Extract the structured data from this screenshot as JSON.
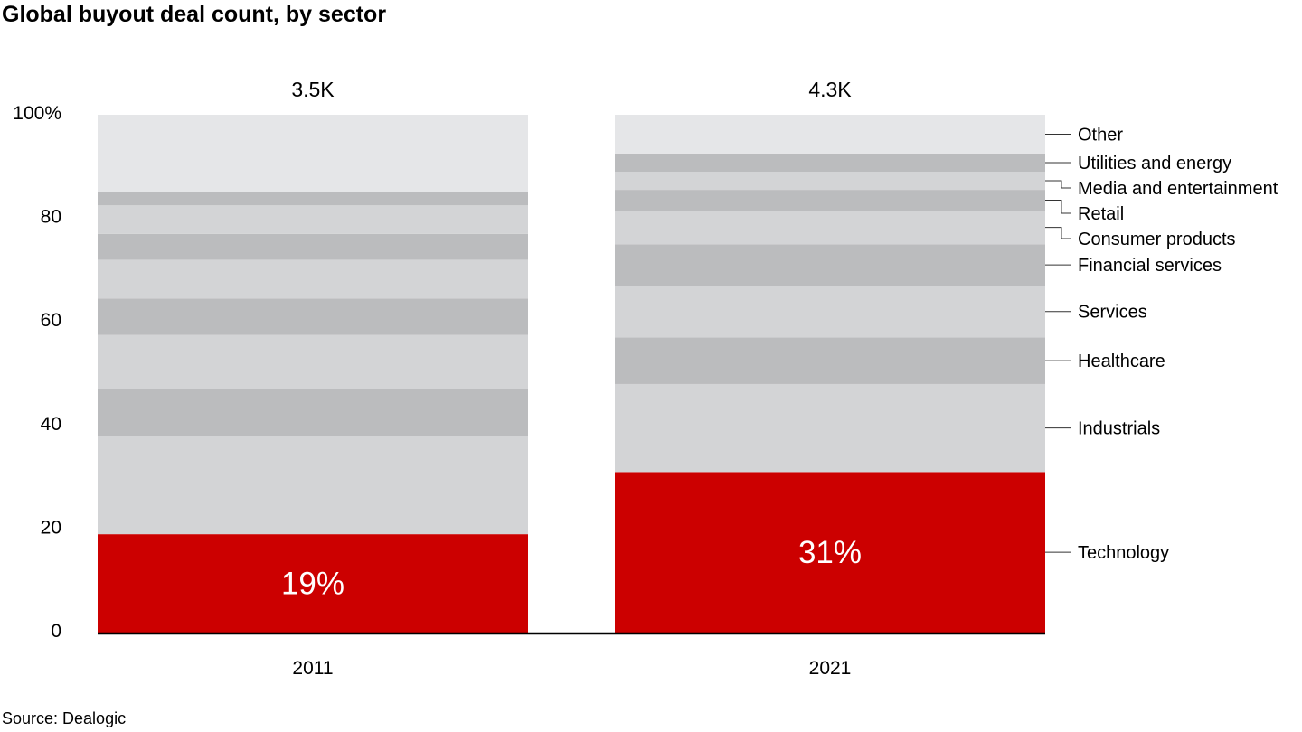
{
  "title": "Global buyout deal count, by sector",
  "source": "Source: Dealogic",
  "colors": {
    "highlight": "#cc0000",
    "band_light": "#d3d4d6",
    "band_dark": "#bbbcbe",
    "other": "#e5e6e8",
    "axis": "#000000",
    "leader": "#333333"
  },
  "chart_data": {
    "type": "bar",
    "stacked": true,
    "normalized": true,
    "categories": [
      "2011",
      "2021"
    ],
    "totals": [
      "3.5K",
      "4.3K"
    ],
    "ylim": [
      0,
      100
    ],
    "yticks": [
      "0",
      "20",
      "40",
      "60",
      "80",
      "100%"
    ],
    "grid": false,
    "legend": "right",
    "series": [
      {
        "name": "Technology",
        "values": [
          19,
          31
        ],
        "data_labels": [
          "19%",
          "31%"
        ]
      },
      {
        "name": "Industrials",
        "values": [
          19,
          17
        ],
        "data_labels": [
          "",
          ""
        ]
      },
      {
        "name": "Healthcare",
        "values": [
          9,
          9
        ],
        "data_labels": [
          "",
          ""
        ]
      },
      {
        "name": "Services",
        "values": [
          10.5,
          10
        ],
        "data_labels": [
          "",
          ""
        ]
      },
      {
        "name": "Financial services",
        "values": [
          7,
          8
        ],
        "data_labels": [
          "",
          ""
        ]
      },
      {
        "name": "Consumer products",
        "values": [
          7.5,
          6.5
        ],
        "data_labels": [
          "",
          ""
        ]
      },
      {
        "name": "Retail",
        "values": [
          5,
          4
        ],
        "data_labels": [
          "",
          ""
        ]
      },
      {
        "name": "Media and entertainment",
        "values": [
          5.5,
          3.5
        ],
        "data_labels": [
          "",
          ""
        ]
      },
      {
        "name": "Utilities and energy",
        "values": [
          2.5,
          3.5
        ],
        "data_labels": [
          "",
          ""
        ]
      },
      {
        "name": "Other",
        "values": [
          15,
          7.5
        ],
        "data_labels": [
          "",
          ""
        ]
      }
    ]
  }
}
